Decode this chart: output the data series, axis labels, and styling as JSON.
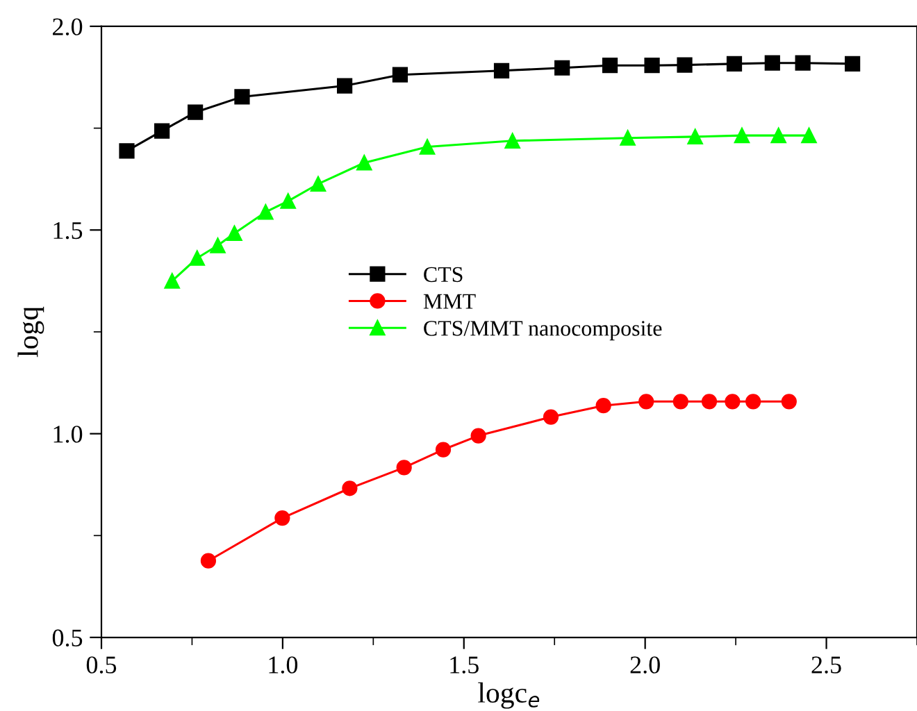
{
  "chart_data": {
    "type": "line",
    "xlabel": "logc$_{e}$",
    "ylabel": "logq",
    "xlim": [
      0.5,
      2.75
    ],
    "ylim": [
      0.5,
      2.0
    ],
    "xticks": [
      0.5,
      {
        "value": 1,
        "label": "1.0"
      },
      1.5,
      {
        "value": 2,
        "label": "2.0"
      },
      2.5
    ],
    "yticks": [
      0.5,
      {
        "value": 1,
        "label": "1.0"
      },
      1.5,
      {
        "value": 2,
        "label": "2.0"
      }
    ],
    "grid": false,
    "legend": "center",
    "line_style": "solid",
    "series": [
      {
        "name": "CTS",
        "color": "#000000",
        "marker": "square",
        "x": [
          0.57,
          0.667,
          0.759,
          0.888,
          1.171,
          1.324,
          1.604,
          1.771,
          1.903,
          2.019,
          2.109,
          2.246,
          2.351,
          2.435,
          2.572
        ],
        "values": [
          1.694,
          1.743,
          1.789,
          1.827,
          1.854,
          1.881,
          1.891,
          1.898,
          1.904,
          1.904,
          1.905,
          1.908,
          1.91,
          1.91,
          1.908
        ]
      },
      {
        "name": "MMT",
        "color": "#ff0000",
        "marker": "circle",
        "x": [
          0.795,
          0.999,
          1.185,
          1.335,
          1.443,
          1.54,
          1.74,
          1.885,
          2.003,
          2.098,
          2.177,
          2.241,
          2.298,
          2.397
        ],
        "values": [
          0.688,
          0.793,
          0.866,
          0.917,
          0.961,
          0.995,
          1.041,
          1.069,
          1.079,
          1.079,
          1.079,
          1.079,
          1.079,
          1.079
        ]
      },
      {
        "name": "CTS/MMT nanocomposite",
        "color": "#00ff00",
        "marker": "triangle",
        "x": [
          0.695,
          0.764,
          0.821,
          0.867,
          0.953,
          1.015,
          1.098,
          1.225,
          1.399,
          1.634,
          1.952,
          2.138,
          2.267,
          2.368,
          2.452
        ],
        "values": [
          1.375,
          1.431,
          1.462,
          1.492,
          1.544,
          1.571,
          1.613,
          1.665,
          1.704,
          1.719,
          1.726,
          1.729,
          1.732,
          1.732,
          1.732
        ]
      }
    ]
  }
}
